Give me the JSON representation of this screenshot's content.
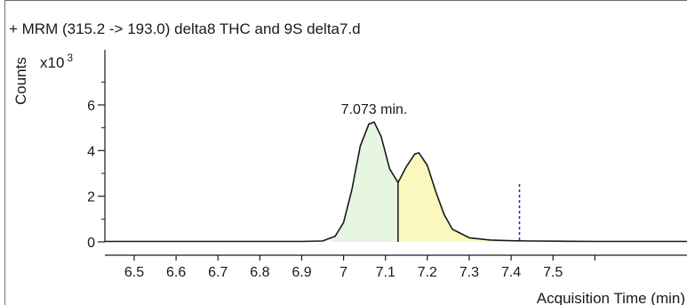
{
  "chart_data": {
    "type": "line",
    "title": "+ MRM (315.2 -> 193.0) delta8 THC and 9S delta7.d",
    "ylabel": "Counts",
    "y_multiplier": "x10",
    "y_multiplier_exp": "3",
    "xlabel": "Acquisition Time (min)",
    "xlim": [
      6.43,
      7.82
    ],
    "ylim": [
      -0.3,
      8.2
    ],
    "x_ticks": [
      6.5,
      6.6,
      6.7,
      6.8,
      6.9,
      7.0,
      7.1,
      7.2,
      7.3,
      7.4,
      7.5
    ],
    "x_tick_labels": [
      "6.5",
      "6.6",
      "6.7",
      "6.8",
      "6.9",
      "7",
      "7.1",
      "7.2",
      "7.3",
      "7.4",
      "7.5"
    ],
    "y_ticks": [
      0,
      2,
      4,
      6
    ],
    "y_tick_labels": [
      "0",
      "2",
      "4",
      "6"
    ],
    "series": [
      {
        "values_x": [
          6.43,
          6.5,
          6.6,
          6.7,
          6.8,
          6.9,
          6.95,
          6.98,
          7.0,
          7.02,
          7.04,
          7.06,
          7.073,
          7.09,
          7.11,
          7.13,
          7.15,
          7.17,
          7.18,
          7.2,
          7.22,
          7.24,
          7.26,
          7.3,
          7.35,
          7.4,
          7.45,
          7.5,
          7.6,
          7.7,
          7.82
        ],
        "values_y": [
          0.02,
          0.02,
          0.02,
          0.02,
          0.02,
          0.02,
          0.04,
          0.25,
          0.85,
          2.3,
          4.2,
          5.15,
          5.25,
          4.6,
          3.2,
          2.6,
          3.3,
          3.85,
          3.9,
          3.35,
          2.2,
          1.2,
          0.55,
          0.18,
          0.08,
          0.05,
          0.04,
          0.03,
          0.02,
          0.02,
          0.02
        ]
      }
    ],
    "integrated_peaks": [
      {
        "start": 6.97,
        "end": 7.13,
        "color": "#e6f6e0"
      },
      {
        "start": 7.13,
        "end": 7.39,
        "color": "#fbf8be"
      }
    ],
    "annotations": [
      {
        "text": "7.073 min.",
        "x": 7.073,
        "y": 5.3
      }
    ],
    "marker_line_x": 7.42,
    "marker_line_top_y": 1.75,
    "colors": {
      "trace": "#1a1a1a",
      "marker": "#1f1fa8",
      "axis": "#1a1a1a",
      "frame": "#6d6d6d"
    }
  }
}
